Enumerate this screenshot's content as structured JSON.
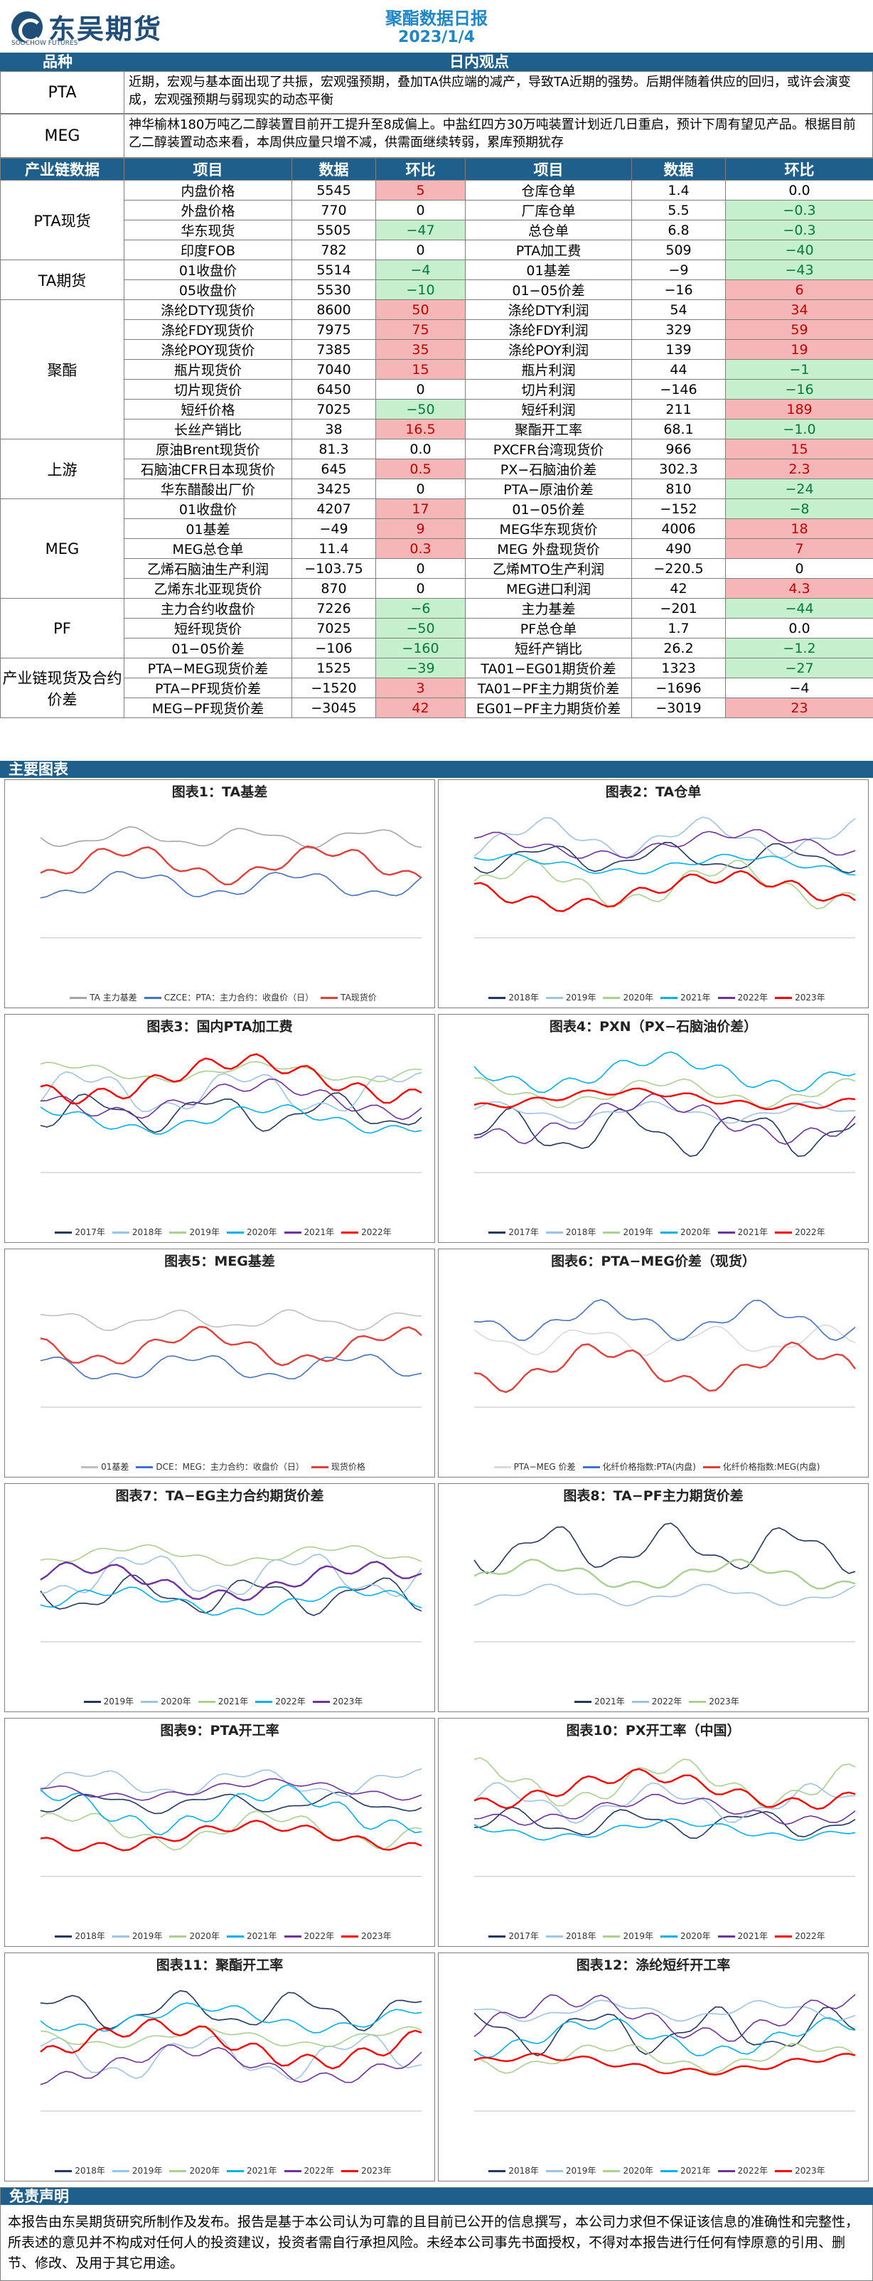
{
  "header": {
    "company": "东吴期货",
    "company_en": "SOOCHOW FUTURES",
    "title": "聚酯数据日报",
    "date": "2023/1/4"
  },
  "bands": {
    "variety": "品种",
    "daily_view": "日内观点",
    "chain_data": "产业链数据",
    "charts": "主要图表",
    "disclaimer": "免责声明"
  },
  "views": [
    {
      "label": "PTA",
      "text": "近期，宏观与基本面出现了共振，宏观强预期，叠加TA供应端的减产，导致TA近期的强势。后期伴随着供应的回归，或许会演变成，宏观强预期与弱现实的动态平衡"
    },
    {
      "label": "MEG",
      "text": "神华榆林180万吨乙二醇装置目前开工提升至8成偏上。中盐红四方30万吨装置计划近几日重启，预计下周有望见产品。根据目前乙二醇装置动态来看，本周供应量只增不减，供需面继续转弱，累库预期犹存"
    }
  ],
  "table_headers": {
    "col1": "项目",
    "col2": "数据",
    "col3": "环比",
    "col4": "项目",
    "col5": "数据",
    "col6": "环比"
  },
  "groups": {
    "pta_spot": "PTA现货",
    "ta_futures": "TA期货",
    "polyester": "聚酯",
    "upstream": "上游",
    "meg": "MEG",
    "pf": "PF",
    "chain_spread": "产业链现货及合约价差"
  },
  "rows": [
    {
      "i1": "内盘价格",
      "d1": "5545",
      "c1": "5",
      "k1": "up",
      "i2": "仓库仓单",
      "d2": "1.4",
      "c2": "0.0",
      "k2": ""
    },
    {
      "i1": "外盘价格",
      "d1": "770",
      "c1": "0",
      "k1": "",
      "i2": "厂库仓单",
      "d2": "5.5",
      "c2": "−0.3",
      "k2": "dn"
    },
    {
      "i1": "华东现货",
      "d1": "5505",
      "c1": "−47",
      "k1": "dn",
      "i2": "总仓单",
      "d2": "6.8",
      "c2": "−0.3",
      "k2": "dn"
    },
    {
      "i1": "印度FOB",
      "d1": "782",
      "c1": "0",
      "k1": "",
      "i2": "PTA加工费",
      "d2": "509",
      "c2": "−40",
      "k2": "dn"
    },
    {
      "i1": "01收盘价",
      "d1": "5514",
      "c1": "−4",
      "k1": "dn",
      "i2": "01基差",
      "d2": "−9",
      "c2": "−43",
      "k2": "dn"
    },
    {
      "i1": "05收盘价",
      "d1": "5530",
      "c1": "−10",
      "k1": "dn",
      "i2": "01−05价差",
      "d2": "−16",
      "c2": "6",
      "k2": "up"
    },
    {
      "i1": "涤纶DTY现货价",
      "d1": "8600",
      "c1": "50",
      "k1": "up",
      "i2": "涤纶DTY利润",
      "d2": "54",
      "c2": "34",
      "k2": "up"
    },
    {
      "i1": "涤纶FDY现货价",
      "d1": "7975",
      "c1": "75",
      "k1": "up",
      "i2": "涤纶FDY利润",
      "d2": "329",
      "c2": "59",
      "k2": "up"
    },
    {
      "i1": "涤纶POY现货价",
      "d1": "7385",
      "c1": "35",
      "k1": "up",
      "i2": "涤纶POY利润",
      "d2": "139",
      "c2": "19",
      "k2": "up"
    },
    {
      "i1": "瓶片现货价",
      "d1": "7040",
      "c1": "15",
      "k1": "up",
      "i2": "瓶片利润",
      "d2": "44",
      "c2": "−1",
      "k2": "dn"
    },
    {
      "i1": "切片现货价",
      "d1": "6450",
      "c1": "0",
      "k1": "",
      "i2": "切片利润",
      "d2": "−146",
      "c2": "−16",
      "k2": "dn"
    },
    {
      "i1": "短纤价格",
      "d1": "7025",
      "c1": "−50",
      "k1": "dn",
      "i2": "短纤利润",
      "d2": "211",
      "c2": "189",
      "k2": "up"
    },
    {
      "i1": "长丝产销比",
      "d1": "38",
      "c1": "16.5",
      "k1": "up",
      "i2": "聚酯开工率",
      "d2": "68.1",
      "c2": "−1.0",
      "k2": "dn"
    },
    {
      "i1": "原油Brent现货价",
      "d1": "81.3",
      "c1": "0.0",
      "k1": "",
      "i2": "PXCFR台湾现货价",
      "d2": "966",
      "c2": "15",
      "k2": "up"
    },
    {
      "i1": "石脑油CFR日本现货价",
      "d1": "645",
      "c1": "0.5",
      "k1": "up",
      "i2": "PX−石脑油价差",
      "d2": "302.3",
      "c2": "2.3",
      "k2": "up"
    },
    {
      "i1": "华东醋酸出厂价",
      "d1": "3425",
      "c1": "0",
      "k1": "",
      "i2": "PTA−原油价差",
      "d2": "810",
      "c2": "−24",
      "k2": "dn"
    },
    {
      "i1": "01收盘价",
      "d1": "4207",
      "c1": "17",
      "k1": "up",
      "i2": "01−05价差",
      "d2": "−152",
      "c2": "−8",
      "k2": "dn"
    },
    {
      "i1": "01基差",
      "d1": "−49",
      "c1": "9",
      "k1": "up",
      "i2": "MEG华东现货价",
      "d2": "4006",
      "c2": "18",
      "k2": "up"
    },
    {
      "i1": "MEG总仓单",
      "d1": "11.4",
      "c1": "0.3",
      "k1": "up",
      "i2": "MEG 外盘现货价",
      "d2": "490",
      "c2": "7",
      "k2": "up"
    },
    {
      "i1": "乙烯石脑油生产利润",
      "d1": "−103.75",
      "c1": "0",
      "k1": "",
      "i2": "乙烯MTO生产利润",
      "d2": "−220.5",
      "c2": "0",
      "k2": ""
    },
    {
      "i1": "乙烯东北亚现货价",
      "d1": "870",
      "c1": "0",
      "k1": "",
      "i2": "MEG进口利润",
      "d2": "42",
      "c2": "4.3",
      "k2": "up"
    },
    {
      "i1": "主力合约收盘价",
      "d1": "7226",
      "c1": "−6",
      "k1": "dn",
      "i2": "主力基差",
      "d2": "−201",
      "c2": "−44",
      "k2": "dn"
    },
    {
      "i1": "短纤现货价",
      "d1": "7025",
      "c1": "−50",
      "k1": "dn",
      "i2": "PF总仓单",
      "d2": "1.7",
      "c2": "0.0",
      "k2": ""
    },
    {
      "i1": "01−05价差",
      "d1": "−106",
      "c1": "−160",
      "k1": "dn",
      "i2": "短纤产销比",
      "d2": "26.2",
      "c2": "−1.2",
      "k2": "dn"
    },
    {
      "i1": "PTA−MEG现货价差",
      "d1": "1525",
      "c1": "−39",
      "k1": "dn",
      "i2": "TA01−EG01期货价差",
      "d2": "1323",
      "c2": "−27",
      "k2": "dn"
    },
    {
      "i1": "PTA−PF现货价差",
      "d1": "−1520",
      "c1": "3",
      "k1": "up",
      "i2": "TA01−PF主力期货价差",
      "d2": "−1696",
      "c2": "−4",
      "k2": ""
    },
    {
      "i1": "MEG−PF现货价差",
      "d1": "−3045",
      "c1": "42",
      "k1": "up",
      "i2": "EG01−PF主力期货价差",
      "d2": "−3019",
      "c2": "23",
      "k2": "up"
    }
  ],
  "charts": [
    {
      "title": "图表1：TA基差",
      "legend": [
        "TA 主力基差",
        "CZCE：PTA：主力合约：收盘价（日）",
        "TA现货价"
      ]
    },
    {
      "title": "图表2：TA仓单",
      "legend": [
        "2018年",
        "2019年",
        "2020年",
        "2021年",
        "2022年",
        "2023年"
      ]
    },
    {
      "title": "图表3：国内PTA加工费",
      "legend": [
        "2017年",
        "2018年",
        "2019年",
        "2020年",
        "2021年",
        "2022年"
      ]
    },
    {
      "title": "图表4：PXN（PX−石脑油价差）",
      "legend": [
        "2017年",
        "2018年",
        "2019年",
        "2020年",
        "2021年",
        "2022年"
      ]
    },
    {
      "title": "图表5：MEG基差",
      "legend": [
        "01基差",
        "DCE：MEG：主力合约：收盘价（日）",
        "现货价格"
      ]
    },
    {
      "title": "图表6：PTA−MEG价差（现货）",
      "legend": [
        "PTA−MEG 价差",
        "化纤价格指数:PTA(内盘)",
        "化纤价格指数:MEG(内盘)"
      ]
    },
    {
      "title": "图表7：TA−EG主力合约期货价差",
      "legend": [
        "2019年",
        "2020年",
        "2021年",
        "2022年",
        "2023年"
      ]
    },
    {
      "title": "图表8：TA−PF主力期货价差",
      "legend": [
        "2021年",
        "2022年",
        "2023年"
      ]
    },
    {
      "title": "图表9：PTA开工率",
      "legend": [
        "2018年",
        "2019年",
        "2020年",
        "2021年",
        "2022年",
        "2023年"
      ]
    },
    {
      "title": "图表10：PX开工率（中国）",
      "legend": [
        "2017年",
        "2018年",
        "2019年",
        "2020年",
        "2021年",
        "2022年"
      ]
    },
    {
      "title": "图表11：聚酯开工率",
      "legend": [
        "2018年",
        "2019年",
        "2020年",
        "2021年",
        "2022年",
        "2023年"
      ]
    },
    {
      "title": "图表12：涤纶短纤开工率",
      "legend": [
        "2018年",
        "2019年",
        "2020年",
        "2021年",
        "2022年",
        "2023年"
      ]
    }
  ],
  "colors": {
    "accent": "#1f5f8b",
    "title": "#1f86c8",
    "up_bg": "#f4b6b6",
    "dn_bg": "#c6efce",
    "y2018": "#1f3864",
    "y2019": "#9dc3e6",
    "y2020": "#a9d18e",
    "y2021": "#00b0f0",
    "y2022": "#7030a0",
    "y2023": "#ff0000"
  },
  "disclaimer": "本报告由东吴期货研究所制作及发布。报告是基于本公司认为可靠的且目前已公开的信息撰写，本公司力求但不保证该信息的准确性和完整性，所表述的意见并不构成对任何人的投资建议，投资者需自行承担风险。未经本公司事先书面授权，不得对本报告进行任何有悖原意的引用、删节、修改、及用于其它用途。"
}
